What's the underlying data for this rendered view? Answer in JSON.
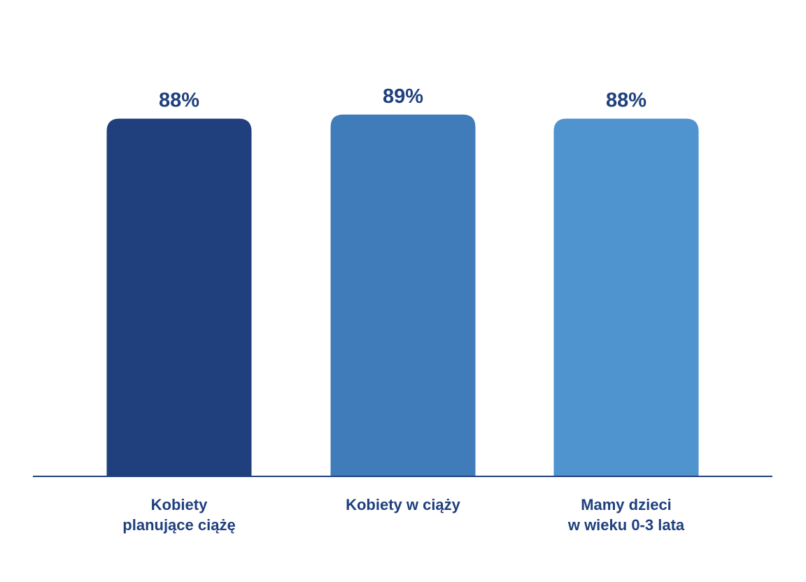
{
  "chart_data": {
    "type": "bar",
    "title": "",
    "xlabel": "",
    "ylabel": "",
    "ylim": [
      0,
      100
    ],
    "grid": false,
    "legend": "none",
    "categories": [
      [
        "Kobiety",
        "planujące ciążę"
      ],
      [
        "Kobiety w ciąży"
      ],
      [
        "Mamy dzieci",
        "w wieku 0-3 lata"
      ]
    ],
    "values": [
      88,
      89,
      88
    ],
    "value_labels": [
      "88%",
      "89%",
      "88%"
    ],
    "bar_colors": [
      "#1f3f7d",
      "#407cb9",
      "#4f93cf"
    ],
    "label_color": "#1f3f7d",
    "axis_color": "#1f3f7d"
  }
}
